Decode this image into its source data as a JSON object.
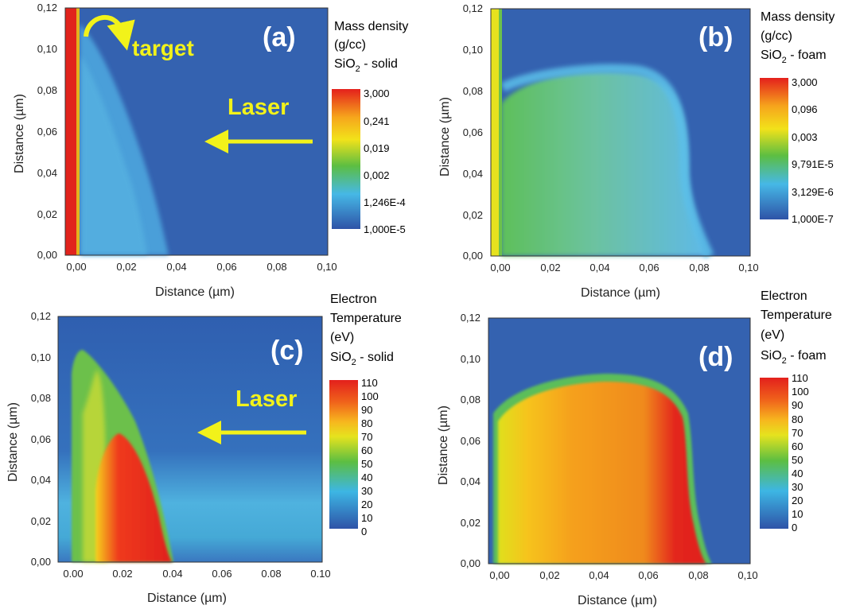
{
  "chart_data": [
    {
      "type": "heatmap",
      "panel_label": "(a)",
      "xlabel": "Distance (µm)",
      "ylabel": "Distance (µm)",
      "xlim": [
        -0.005,
        0.1
      ],
      "ylim": [
        0.0,
        0.12
      ],
      "xticks": [
        "0,00",
        "0,02",
        "0,04",
        "0,06",
        "0,08",
        "0,10"
      ],
      "yticks": [
        "0,00",
        "0,02",
        "0,04",
        "0,06",
        "0,08",
        "0,10",
        "0,12"
      ],
      "colorbar_title": [
        "Mass density",
        "(g/cc)"
      ],
      "material": {
        "base": "SiO",
        "sub": "2",
        "rest": " - solid"
      },
      "colorbar_labels": [
        "3,000",
        "0,241",
        "0,019",
        "0,002",
        "1,246E-4",
        "1,000E-5"
      ],
      "annotations": [
        "target",
        "Laser"
      ],
      "profile": {
        "x_max_at_top": 0.012,
        "x_max_at_bottom": 0.038,
        "front_top": 0.105
      }
    },
    {
      "type": "heatmap",
      "panel_label": "(b)",
      "xlabel": "Distance (µm)",
      "ylabel": "Distance (µm)",
      "xlim": [
        -0.005,
        0.1
      ],
      "ylim": [
        0.0,
        0.12
      ],
      "xticks": [
        "0,00",
        "0,02",
        "0,04",
        "0,06",
        "0,08",
        "0,10"
      ],
      "yticks": [
        "0,00",
        "0,02",
        "0,04",
        "0,06",
        "0,08",
        "0,10",
        "0,12"
      ],
      "colorbar_title": [
        "Mass density",
        "(g/cc)"
      ],
      "material": {
        "base": "SiO",
        "sub": "2",
        "rest": " - foam"
      },
      "colorbar_labels": [
        "3,000",
        "0,096",
        "0,003",
        "9,791E-5",
        "3,129E-6",
        "1,000E-7"
      ],
      "annotations": [],
      "profile": {
        "front_top": 0.088,
        "front_right": 0.085
      }
    },
    {
      "type": "heatmap",
      "panel_label": "(c)",
      "xlabel": "Distance (µm)",
      "ylabel": "Distance (µm)",
      "xlim": [
        -0.01,
        0.1
      ],
      "ylim": [
        0.0,
        0.12
      ],
      "xticks": [
        "0.00",
        "0.02",
        "0.04",
        "0.06",
        "0.08",
        "0.10"
      ],
      "yticks": [
        "0,00",
        "0,02",
        "0,04",
        "0,06",
        "0,08",
        "0,10",
        "0,12"
      ],
      "colorbar_title": [
        "Electron",
        "Temperature",
        "(eV)"
      ],
      "material": {
        "base": "SiO",
        "sub": "2",
        "rest": " - solid"
      },
      "colorbar_labels": [
        "110",
        "100",
        "90",
        "80",
        "70",
        "60",
        "50",
        "40",
        "30",
        "20",
        "10",
        "0"
      ],
      "colorbar_range": [
        0,
        110
      ],
      "annotations": [
        "Laser"
      ],
      "profile": {
        "hot_peak_y": 0.065,
        "front_top": 0.105,
        "front_x_at_bottom": 0.04
      }
    },
    {
      "type": "heatmap",
      "panel_label": "(d)",
      "xlabel": "Distance (µm)",
      "ylabel": "Distance (µm)",
      "xlim": [
        -0.005,
        0.1
      ],
      "ylim": [
        0.0,
        0.12
      ],
      "xticks": [
        "0,00",
        "0,02",
        "0,04",
        "0,06",
        "0,08",
        "0,10"
      ],
      "yticks": [
        "0,00",
        "0,02",
        "0,04",
        "0,06",
        "0,08",
        "0,10",
        "0,12"
      ],
      "colorbar_title": [
        "Electron",
        "Temperature",
        "(eV)"
      ],
      "material": {
        "base": "SiO",
        "sub": "2",
        "rest": " - foam"
      },
      "colorbar_labels": [
        "110",
        "100",
        "90",
        "80",
        "70",
        "60",
        "50",
        "40",
        "30",
        "20",
        "10",
        "0"
      ],
      "colorbar_range": [
        0,
        110
      ],
      "annotations": [],
      "profile": {
        "front_top": 0.092,
        "front_right": 0.087
      }
    }
  ],
  "colors": {
    "background_blue": "#3462b0",
    "annotation_yellow": "#f2f21a",
    "target_red": "#e1231c",
    "panel_label_white": "#ffffff"
  }
}
